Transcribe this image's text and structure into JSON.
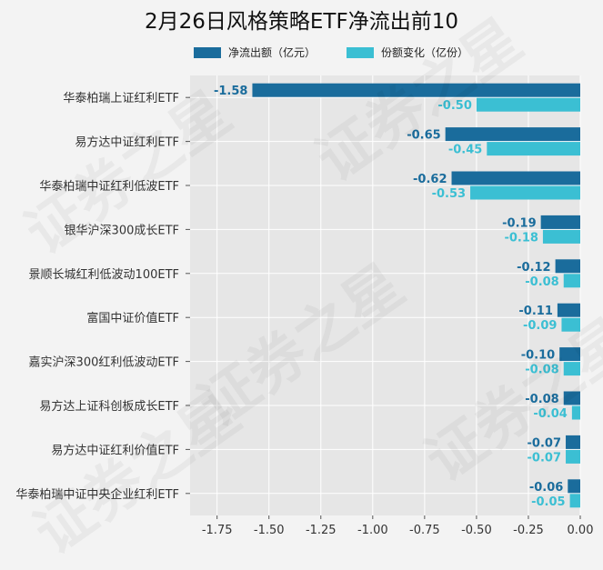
{
  "title": "2月26日风格策略ETF净流出前10",
  "watermark": "证券之星",
  "colors": {
    "background": "#f3f3f3",
    "plot_bg": "#e6e6e6",
    "net_outflow": "#1a6c9c",
    "share_change": "#3bbfd3",
    "grid": "#ffffff"
  },
  "chart_data": {
    "type": "bar",
    "orientation": "horizontal",
    "title": "2月26日风格策略ETF净流出前10",
    "categories": [
      "华泰柏瑞上证红利ETF",
      "易方达中证红利ETF",
      "华泰柏瑞中证红利低波ETF",
      "银华沪深300成长ETF",
      "景顺长城红利低波动100ETF",
      "富国中证价值ETF",
      "嘉实沪深300红利低波动ETF",
      "易方达上证科创板成长ETF",
      "易方达中证红利价值ETF",
      "华泰柏瑞中证中央企业红利ETF"
    ],
    "series": [
      {
        "name": "净流出额（亿元）",
        "color": "#1a6c9c",
        "values": [
          -1.58,
          -0.65,
          -0.62,
          -0.19,
          -0.12,
          -0.11,
          -0.1,
          -0.08,
          -0.07,
          -0.06
        ],
        "labels": [
          "-1.58",
          "-0.65",
          "-0.62",
          "-0.19",
          "-0.12",
          "-0.11",
          "-0.10",
          "-0.08",
          "-0.07",
          "-0.06"
        ]
      },
      {
        "name": "份额变化（亿份）",
        "color": "#3bbfd3",
        "values": [
          -0.5,
          -0.45,
          -0.53,
          -0.18,
          -0.08,
          -0.09,
          -0.08,
          -0.04,
          -0.07,
          -0.05
        ],
        "labels": [
          "-0.50",
          "-0.45",
          "-0.53",
          "-0.18",
          "-0.08",
          "-0.09",
          "-0.08",
          "-0.04",
          "-0.07",
          "-0.05"
        ]
      }
    ],
    "xlim": [
      -1.88,
      0.0
    ],
    "xticks": [
      -1.75,
      -1.5,
      -1.25,
      -1.0,
      -0.75,
      -0.5,
      -0.25,
      0.0
    ],
    "xtick_labels": [
      "-1.75",
      "-1.50",
      "-1.25",
      "-1.00",
      "-0.75",
      "-0.50",
      "-0.25",
      "0.00"
    ],
    "grid": true,
    "legend_position": "top"
  }
}
